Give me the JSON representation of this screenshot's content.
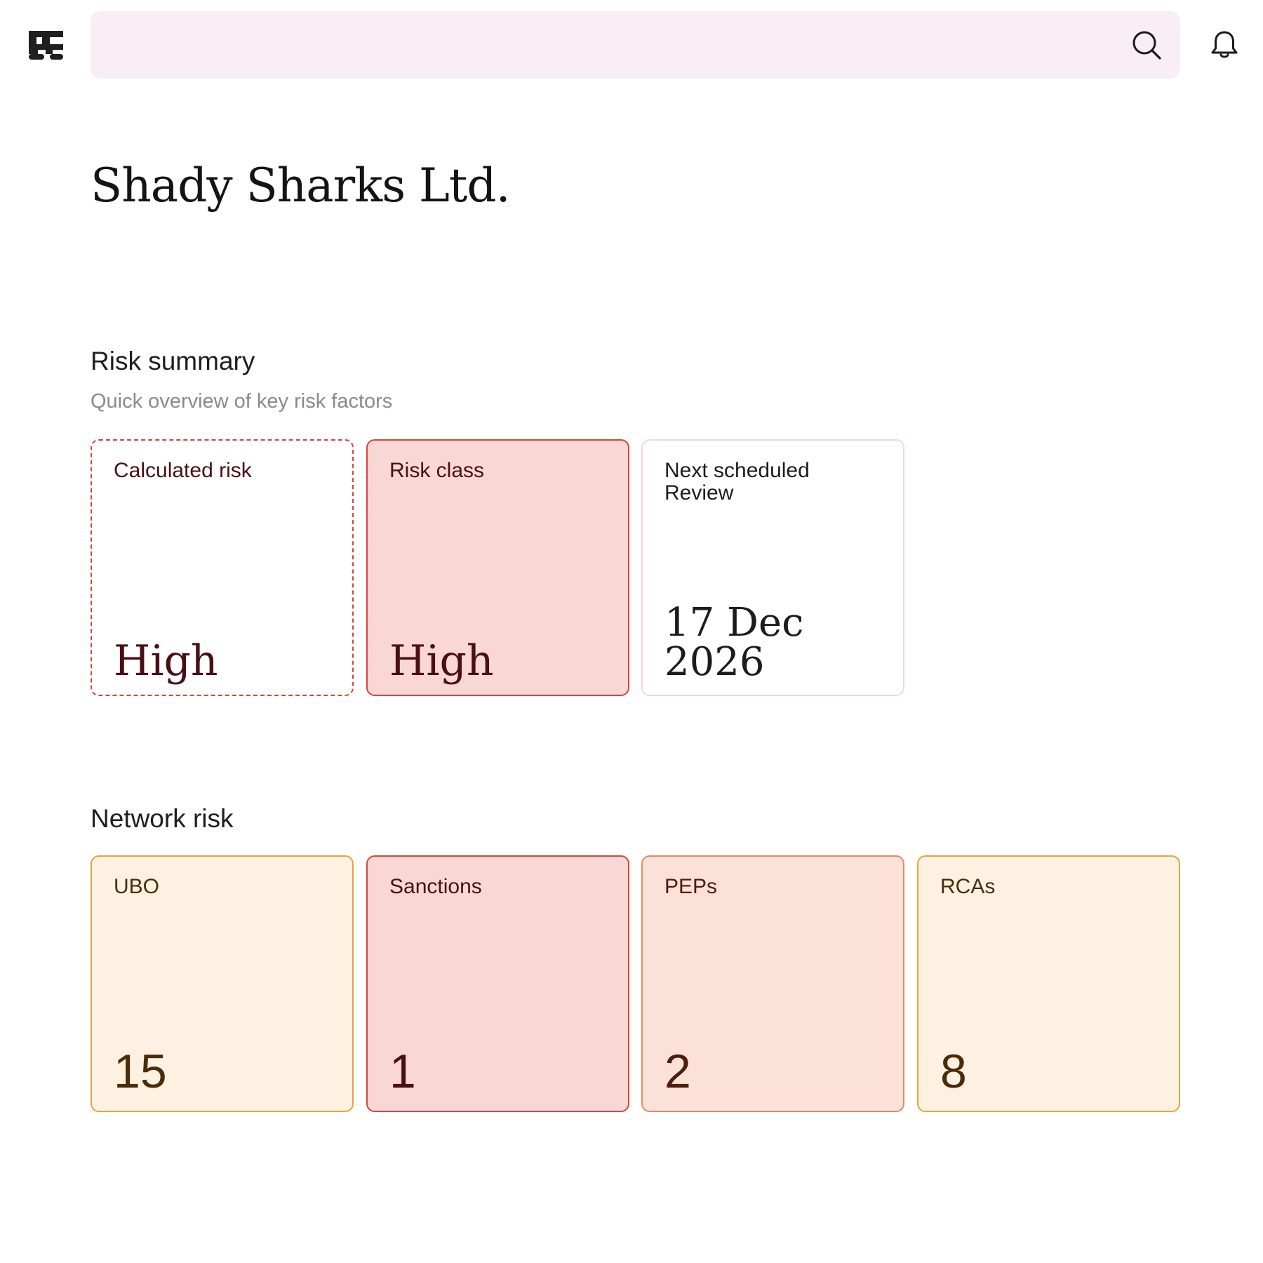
{
  "header": {
    "logo_icon": "brand-logo-icon",
    "search": {
      "placeholder": "",
      "value": "",
      "icon": "search-icon"
    },
    "notifications_icon": "bell-icon"
  },
  "page": {
    "title": "Shady Sharks Ltd."
  },
  "risk_summary": {
    "title": "Risk summary",
    "subtitle": "Quick overview of key risk factors",
    "cards": [
      {
        "label": "Calculated risk",
        "value": "High",
        "accent": "#d9443b",
        "background": "#ffffff"
      },
      {
        "label": "Risk class",
        "value": "High",
        "accent": "#d9443b",
        "background": "#f8d7d4"
      },
      {
        "label": "Next scheduled Review",
        "value": "17 Dec 2026",
        "accent": "#efd6ea",
        "background": "#ffffff"
      }
    ]
  },
  "network_risk": {
    "title": "Network risk",
    "cards": [
      {
        "label": "UBO",
        "value": "15",
        "accent": "#e4a53c",
        "background": "#fef1e1"
      },
      {
        "label": "Sanctions",
        "value": "1",
        "accent": "#d9443b",
        "background": "#f8d7d4"
      },
      {
        "label": "PEPs",
        "value": "2",
        "accent": "#e8885e",
        "background": "#fbe1d7"
      },
      {
        "label": "RCAs",
        "value": "8",
        "accent": "#e4a53c",
        "background": "#fef1e1"
      }
    ]
  }
}
